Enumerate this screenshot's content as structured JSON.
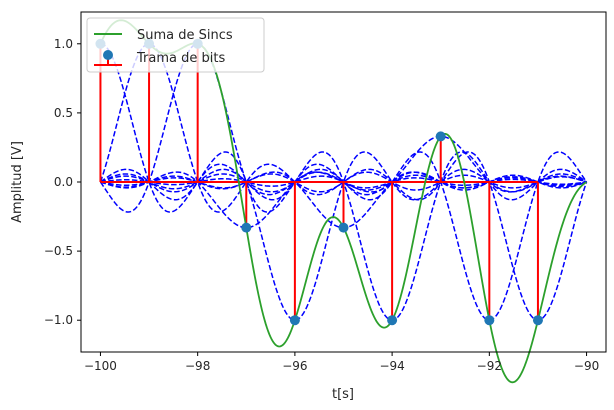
{
  "chart_data": {
    "type": "line",
    "title": "",
    "xlabel": "t[s]",
    "ylabel": "Amplitud [V]",
    "xlim": [
      -100.4,
      -89.6
    ],
    "ylim": [
      -1.23,
      1.23
    ],
    "xticks": [
      -100,
      -98,
      -96,
      -94,
      -92,
      -90
    ],
    "xtick_labels": [
      "−100",
      "−98",
      "−96",
      "−94",
      "−92",
      "−90"
    ],
    "yticks": [
      -1.0,
      -0.5,
      0.0,
      0.5,
      1.0
    ],
    "ytick_labels": [
      "−1.0",
      "−0.5",
      "0.0",
      "0.5",
      "1.0"
    ],
    "grid": false,
    "legend_position": "top-left",
    "legend": [
      {
        "label": "Suma de Sincs",
        "kind": "line",
        "color": "#2ca02c"
      },
      {
        "label": "Trama de bits",
        "kind": "stem",
        "color": "#d62728",
        "marker_color": "#1f77b4"
      }
    ],
    "series": [
      {
        "name": "Trama de bits",
        "kind": "stem",
        "x": [
          -100,
          -99,
          -98,
          -97,
          -96,
          -95,
          -94,
          -93,
          -92,
          -91
        ],
        "values": [
          1,
          1,
          1,
          -0.33,
          -1,
          -0.33,
          -1,
          0.33,
          -1,
          -1
        ],
        "stem_color": "#ff0000",
        "marker_color": "#1f77b4"
      },
      {
        "name": "Suma de Sincs",
        "kind": "line",
        "x_range": [
          -100,
          -90
        ],
        "color": "#2ca02c"
      },
      {
        "kind": "dashed",
        "x_range": [
          -100,
          -90
        ],
        "color": "#0000ff"
      }
    ]
  }
}
